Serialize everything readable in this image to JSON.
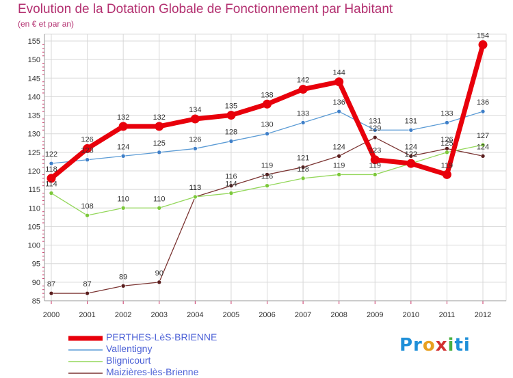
{
  "title": "Evolution de la Dotation Globale de Fonctionnement par Habitant",
  "subtitle": "(en € et par an)",
  "logo": {
    "p1": "Pr",
    "p2": "o",
    "p3": "x",
    "p4": "i",
    "p5": "ti"
  },
  "colors": {
    "accent": "#b33070",
    "legend_text": "#4a5fd6",
    "series": [
      "#e8000b",
      "#5b9bd5",
      "#93d75a",
      "#7b3432"
    ],
    "markers": [
      "#e8000b",
      "#3f7fc8",
      "#7cc83a",
      "#5a1e1e"
    ],
    "grid": "#d8d8d8",
    "axis_tick": "#cc3366"
  },
  "chart_data": {
    "type": "line",
    "title": "Evolution de la Dotation Globale de Fonctionnement par Habitant",
    "subtitle": "(en € et par an)",
    "xlabel": "",
    "ylabel": "",
    "ylim": [
      85,
      155
    ],
    "yticks": [
      85,
      90,
      95,
      100,
      105,
      110,
      115,
      120,
      125,
      130,
      135,
      140,
      145,
      150,
      155
    ],
    "x": [
      "2000",
      "2001",
      "2002",
      "2003",
      "2004",
      "2005",
      "2006",
      "2007",
      "2008",
      "2009",
      "2010",
      "2011",
      "2012"
    ],
    "grid": true,
    "legend_position": "bottom-left",
    "series": [
      {
        "name": "PERTHES-LèS-BRIENNE",
        "values": [
          118,
          126,
          132,
          132,
          134,
          135,
          138,
          142,
          144,
          123,
          122,
          119,
          154
        ]
      },
      {
        "name": "Vallentigny",
        "values": [
          122,
          123,
          124,
          125,
          126,
          128,
          130,
          133,
          136,
          131,
          131,
          133,
          136
        ]
      },
      {
        "name": "Blignicourt",
        "values": [
          114,
          108,
          110,
          110,
          113,
          114,
          116,
          118,
          119,
          119,
          122,
          125,
          127
        ]
      },
      {
        "name": "Maizières-lès-Brienne",
        "values": [
          87,
          87,
          89,
          90,
          113,
          116,
          119,
          121,
          124,
          129,
          124,
          126,
          124
        ]
      }
    ]
  }
}
